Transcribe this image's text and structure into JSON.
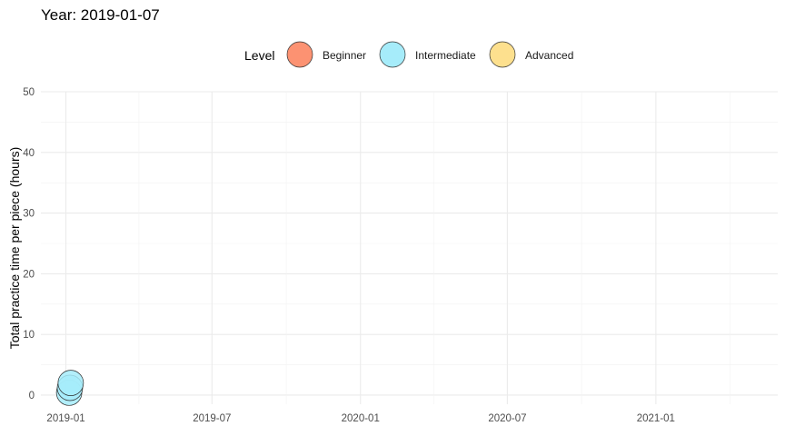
{
  "chart_data": {
    "type": "scatter",
    "title": "Year: 2019-01-07",
    "xlabel": "",
    "ylabel": "Total practice time per piece (hours)",
    "legend": {
      "title": "Level",
      "placement": "top",
      "entries": [
        {
          "name": "Beginner",
          "color": "#fc9272"
        },
        {
          "name": "Intermediate",
          "color": "#a6ecfa"
        },
        {
          "name": "Advanced",
          "color": "#fde08e"
        }
      ]
    },
    "x_ticks": [
      "2019-01",
      "2019-07",
      "2020-01",
      "2020-07",
      "2021-01"
    ],
    "xlim": [
      "2018-12-01",
      "2021-06-01"
    ],
    "y_ticks": [
      0,
      10,
      20,
      30,
      40,
      50
    ],
    "ylim": [
      -1.5,
      50
    ],
    "grid": true,
    "series": [
      {
        "level": "Intermediate",
        "points": [
          {
            "x": "2019-01-05",
            "y": 0.4
          },
          {
            "x": "2019-01-06",
            "y": 1.2
          },
          {
            "x": "2019-01-07",
            "y": 2.0
          }
        ]
      }
    ]
  }
}
